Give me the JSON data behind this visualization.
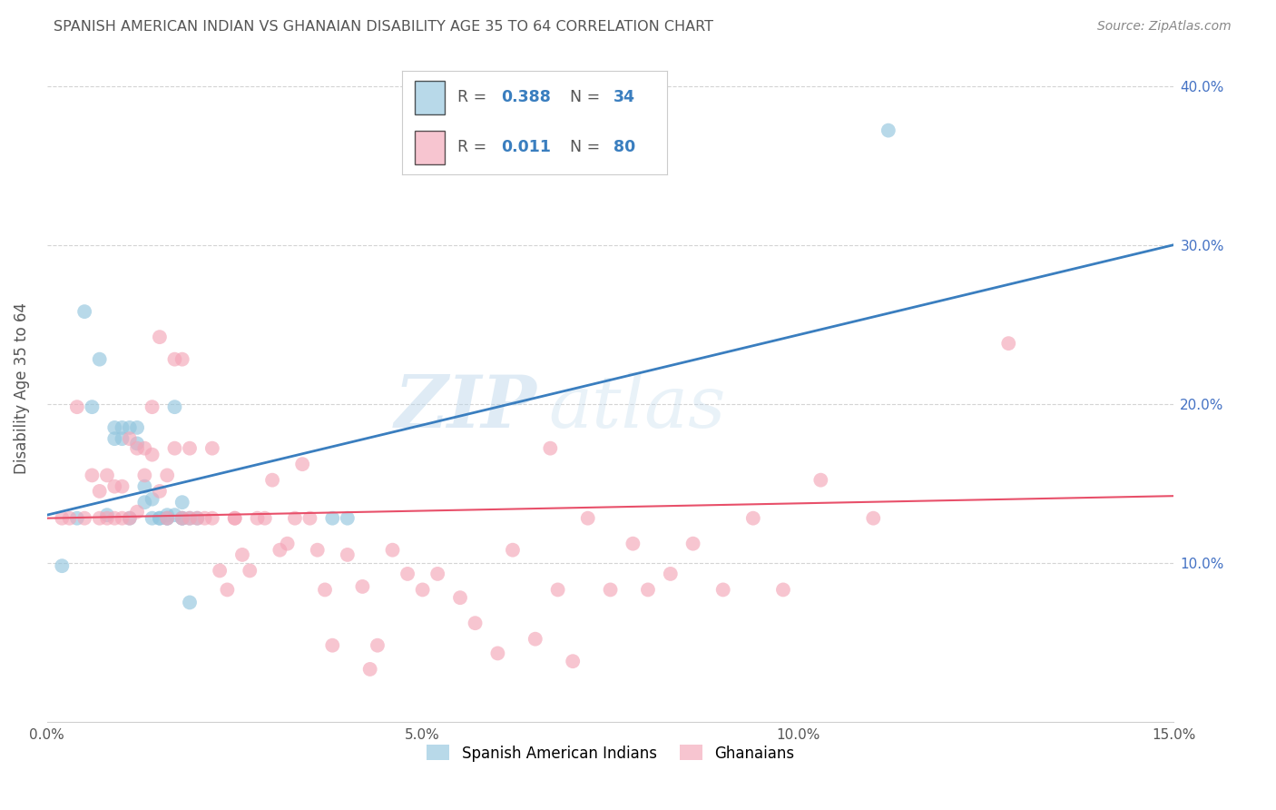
{
  "title": "SPANISH AMERICAN INDIAN VS GHANAIAN DISABILITY AGE 35 TO 64 CORRELATION CHART",
  "source": "Source: ZipAtlas.com",
  "ylabel": "Disability Age 35 to 64",
  "xmin": 0.0,
  "xmax": 0.15,
  "ymin": 0.0,
  "ymax": 0.42,
  "xticks": [
    0.0,
    0.05,
    0.1,
    0.15
  ],
  "xtick_labels": [
    "0.0%",
    "5.0%",
    "10.0%",
    "15.0%"
  ],
  "yticks": [
    0.1,
    0.2,
    0.3,
    0.4
  ],
  "ytick_labels": [
    "10.0%",
    "20.0%",
    "30.0%",
    "40.0%"
  ],
  "legend1_R": "0.388",
  "legend1_N": "34",
  "legend2_R": "0.011",
  "legend2_N": "80",
  "watermark_zip": "ZIP",
  "watermark_atlas": "atlas",
  "blue_color": "#92c5de",
  "pink_color": "#f4a6b8",
  "blue_line_color": "#3a7ebf",
  "pink_line_color": "#e8506a",
  "blue_scatter_x": [
    0.002,
    0.004,
    0.005,
    0.006,
    0.007,
    0.008,
    0.009,
    0.009,
    0.01,
    0.01,
    0.011,
    0.011,
    0.012,
    0.012,
    0.013,
    0.013,
    0.014,
    0.014,
    0.015,
    0.015,
    0.016,
    0.016,
    0.016,
    0.017,
    0.017,
    0.018,
    0.018,
    0.018,
    0.019,
    0.019,
    0.02,
    0.038,
    0.04,
    0.112
  ],
  "blue_scatter_y": [
    0.098,
    0.128,
    0.258,
    0.198,
    0.228,
    0.13,
    0.178,
    0.185,
    0.178,
    0.185,
    0.128,
    0.185,
    0.175,
    0.185,
    0.138,
    0.148,
    0.128,
    0.14,
    0.128,
    0.128,
    0.128,
    0.128,
    0.13,
    0.13,
    0.198,
    0.128,
    0.138,
    0.128,
    0.075,
    0.128,
    0.128,
    0.128,
    0.128,
    0.372
  ],
  "pink_scatter_x": [
    0.002,
    0.003,
    0.004,
    0.005,
    0.006,
    0.007,
    0.007,
    0.008,
    0.008,
    0.009,
    0.009,
    0.01,
    0.01,
    0.011,
    0.011,
    0.012,
    0.012,
    0.013,
    0.013,
    0.014,
    0.014,
    0.015,
    0.015,
    0.016,
    0.016,
    0.017,
    0.017,
    0.018,
    0.018,
    0.019,
    0.019,
    0.02,
    0.021,
    0.022,
    0.022,
    0.023,
    0.024,
    0.025,
    0.025,
    0.026,
    0.027,
    0.028,
    0.029,
    0.03,
    0.031,
    0.032,
    0.033,
    0.034,
    0.035,
    0.036,
    0.037,
    0.038,
    0.04,
    0.042,
    0.043,
    0.044,
    0.046,
    0.048,
    0.05,
    0.052,
    0.055,
    0.057,
    0.06,
    0.062,
    0.065,
    0.067,
    0.068,
    0.07,
    0.072,
    0.075,
    0.078,
    0.08,
    0.083,
    0.086,
    0.09,
    0.094,
    0.098,
    0.103,
    0.11,
    0.128
  ],
  "pink_scatter_y": [
    0.128,
    0.128,
    0.198,
    0.128,
    0.155,
    0.145,
    0.128,
    0.128,
    0.155,
    0.148,
    0.128,
    0.128,
    0.148,
    0.178,
    0.128,
    0.172,
    0.132,
    0.172,
    0.155,
    0.198,
    0.168,
    0.145,
    0.242,
    0.128,
    0.155,
    0.228,
    0.172,
    0.228,
    0.128,
    0.128,
    0.172,
    0.128,
    0.128,
    0.172,
    0.128,
    0.095,
    0.083,
    0.128,
    0.128,
    0.105,
    0.095,
    0.128,
    0.128,
    0.152,
    0.108,
    0.112,
    0.128,
    0.162,
    0.128,
    0.108,
    0.083,
    0.048,
    0.105,
    0.085,
    0.033,
    0.048,
    0.108,
    0.093,
    0.083,
    0.093,
    0.078,
    0.062,
    0.043,
    0.108,
    0.052,
    0.172,
    0.083,
    0.038,
    0.128,
    0.083,
    0.112,
    0.083,
    0.093,
    0.112,
    0.083,
    0.128,
    0.083,
    0.152,
    0.128,
    0.238
  ],
  "blue_line_x": [
    0.0,
    0.15
  ],
  "blue_line_y": [
    0.13,
    0.3
  ],
  "pink_line_x": [
    0.0,
    0.15
  ],
  "pink_line_y": [
    0.128,
    0.142
  ],
  "background_color": "#ffffff",
  "grid_color": "#d0d0d0",
  "title_color": "#555555",
  "axis_label_color": "#4472c4",
  "tick_color": "#555555",
  "ylabel_color": "#555555"
}
